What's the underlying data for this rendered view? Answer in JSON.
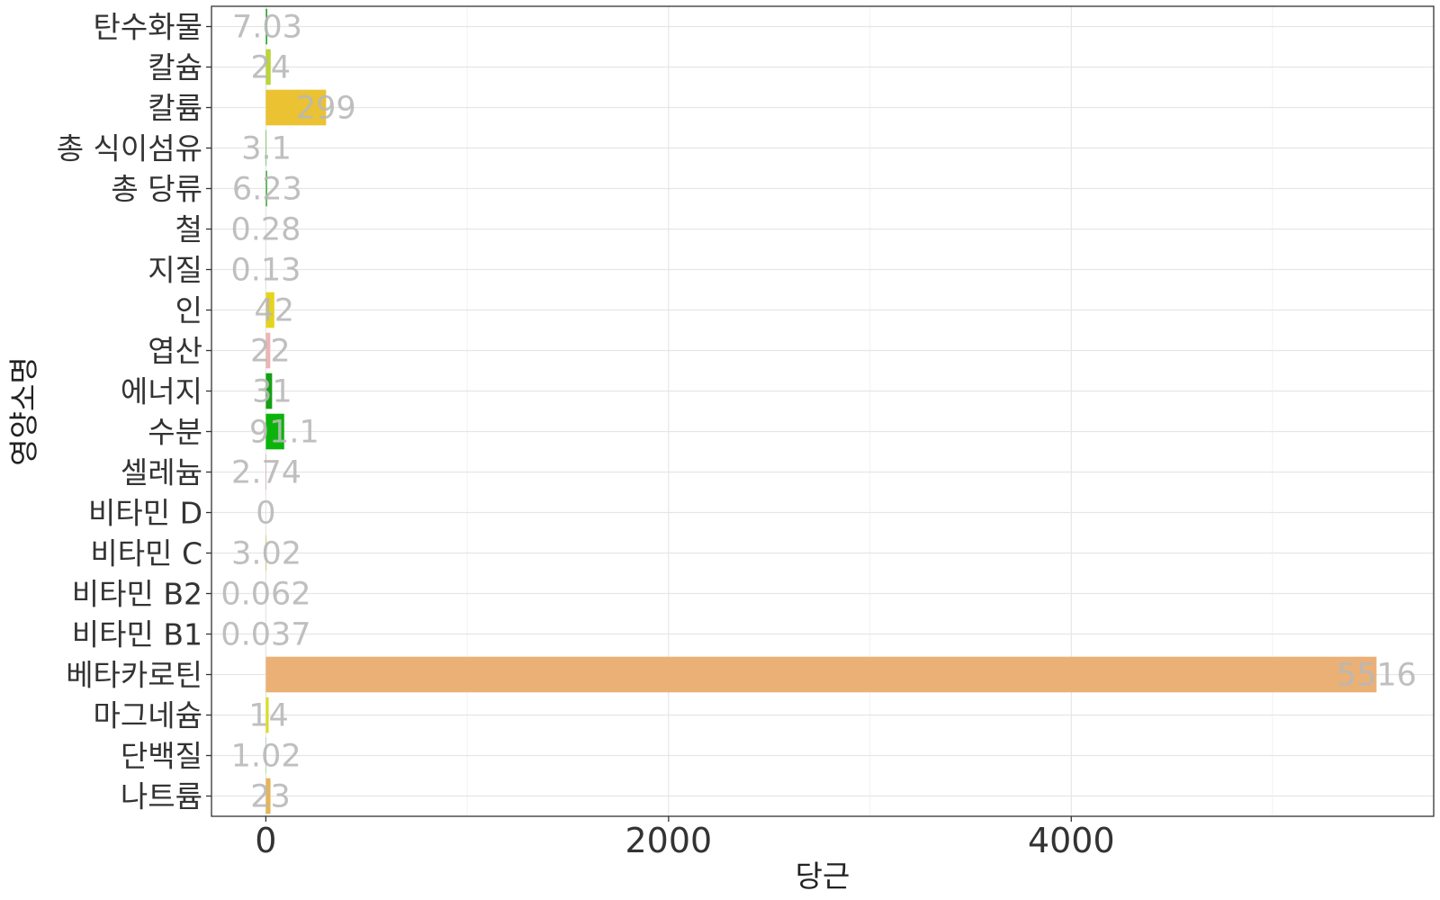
{
  "chart_data": {
    "type": "bar",
    "orientation": "horizontal",
    "xlabel": "당근",
    "ylabel": "영양소명",
    "xlim": [
      -270,
      5800
    ],
    "x_ticks": [
      0,
      2000,
      4000
    ],
    "grid": true,
    "categories": [
      "탄수화물",
      "칼슘",
      "칼륨",
      "총 식이섬유",
      "총 당류",
      "철",
      "지질",
      "인",
      "엽산",
      "에너지",
      "수분",
      "셀레늄",
      "비타민 D",
      "비타민 C",
      "비타민 B2",
      "비타민 B1",
      "베타카로틴",
      "마그네슘",
      "단백질",
      "나트륨"
    ],
    "values": [
      7.03,
      24,
      299,
      3.1,
      6.23,
      0.28,
      0.13,
      42,
      22,
      31,
      91.1,
      2.74,
      0,
      3.02,
      0.062,
      0.037,
      5516,
      14,
      1.02,
      23
    ],
    "labels": [
      "7.03",
      "24",
      "299",
      "3.1",
      "6.23",
      "0.28",
      "0.13",
      "42",
      "22",
      "31",
      "91.1",
      "2.74",
      "0",
      "3.02",
      "0.062",
      "0.037",
      "5516",
      "14",
      "1.02",
      "23"
    ],
    "colors": [
      "#2aa52a",
      "#b9d636",
      "#ebc232",
      "#5ab840",
      "#2ea62e",
      "#d2d84a",
      "#0a9a0a",
      "#e6d41c",
      "#eeb4b4",
      "#14a014",
      "#0ab40a",
      "#d4a8a8",
      "#2aa52a",
      "#d6ba52",
      "#2ea62e",
      "#36a836",
      "#ebb075",
      "#dcdc2a",
      "#2aa52a",
      "#e6b458"
    ]
  }
}
